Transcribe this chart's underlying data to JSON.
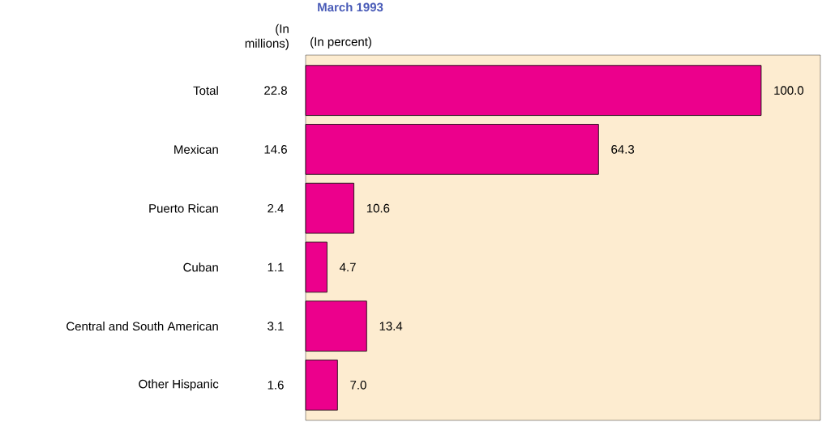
{
  "chart_data": {
    "type": "bar",
    "orientation": "horizontal",
    "title": "March 1993",
    "xlabel": "(In percent)",
    "categories": [
      "Total",
      "Mexican",
      "Puerto Rican",
      "Cuban",
      "Central and South American",
      "Other Hispanic"
    ],
    "values": [
      100.0,
      64.3,
      10.6,
      4.7,
      13.4,
      7.0
    ],
    "value_labels": [
      "100.0",
      "64.3",
      "10.6",
      "4.7",
      "13.4",
      "7.0"
    ],
    "color": "#ec008c",
    "xlim": [
      0,
      113
    ],
    "annotations": [
      "(In millions)",
      "22.8",
      "14.6",
      "2.4",
      "1.1",
      "3.1",
      "1.6"
    ]
  }
}
